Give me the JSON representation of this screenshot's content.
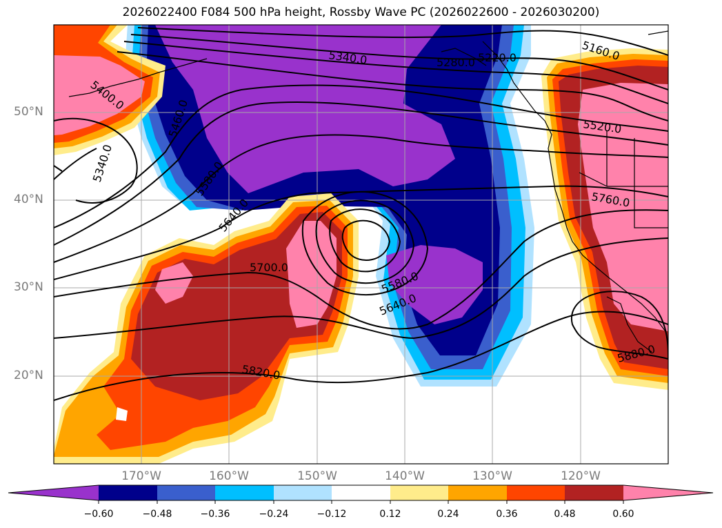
{
  "title": "2026022400 F084 500 hPa height, Rossby Wave PC (2026022600 - 2026030200)",
  "latitude_labels": [
    "50°N",
    "40°N",
    "30°N",
    "20°N"
  ],
  "longitude_labels": [
    "170°W",
    "160°W",
    "150°W",
    "140°W",
    "130°W",
    "120°W"
  ],
  "colorbar": {
    "ticks": [
      "−0.60",
      "−0.48",
      "−0.36",
      "−0.24",
      "−0.12",
      "0.12",
      "0.24",
      "0.36",
      "0.48",
      "0.60"
    ],
    "colors": [
      "#9932cc",
      "#00008b",
      "#3a5fcd",
      "#00bfff",
      "#b0e2ff",
      "#ffffff",
      "#ffec8b",
      "#ffa500",
      "#ff4500",
      "#b22222",
      "#ff82ab"
    ]
  },
  "contour_labels": [
    "5340.0",
    "5220.0",
    "5160.0",
    "5280.0",
    "5400.0",
    "5460.0",
    "5340.0",
    "5580.0",
    "5640.0",
    "5520.0",
    "5760.0",
    "5700.0",
    "5580.0",
    "5640.0",
    "5820.0",
    "5880.0"
  ]
}
